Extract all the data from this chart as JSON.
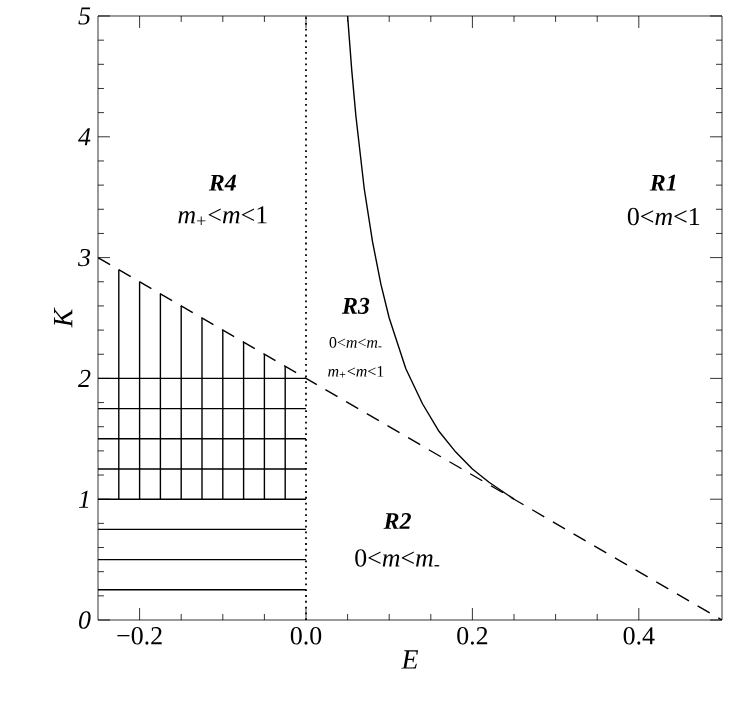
{
  "chart_data": {
    "type": "line",
    "xlabel": "E",
    "ylabel": "K",
    "xlim": [
      -0.25,
      0.5
    ],
    "ylim": [
      0,
      5
    ],
    "xticks": [
      {
        "value": -0.2,
        "label": "−0.2"
      },
      {
        "value": 0,
        "label": "0.0"
      },
      0.2,
      0.4
    ],
    "yticks": [
      0,
      1,
      2,
      3,
      4,
      5
    ],
    "ref_lines": [
      {
        "axis": "x",
        "value": 0,
        "line_style": "dotted",
        "color": "#000000"
      }
    ],
    "annotations": [
      "R1",
      "0<*m*<1",
      "R2",
      "0<*m*<*m*$_{-}$",
      "R3",
      "0<*m*<*m*$_{-}$",
      "*m*$_{+}$<*m*<1",
      "R4",
      "*m*$_{+}$<*m*<1"
    ],
    "series": [
      {
        "type": "line",
        "color": "#000000",
        "line_style": "solid",
        "x": [
          0.05,
          0.055,
          0.06,
          0.07,
          0.08,
          0.09,
          0.1,
          0.12,
          0.14,
          0.16,
          0.18,
          0.2,
          0.22,
          0.25
        ],
        "values": [
          5,
          4.55,
          4.17,
          3.57,
          3.13,
          2.78,
          2.5,
          2.08,
          1.79,
          1.56,
          1.39,
          1.25,
          1.14,
          1.0
        ]
      },
      {
        "color": "#000000",
        "line_style": "dashed",
        "x": [
          -0.25,
          0.5
        ],
        "values": [
          3,
          0
        ]
      },
      {
        "type": "line",
        "color": "#000000",
        "line_style": "solid",
        "x": [
          -0.25,
          0
        ],
        "values": [
          0.25,
          0.25
        ]
      },
      {
        "type": "line",
        "color": "#000000",
        "line_style": "solid",
        "x": [
          -0.25,
          0
        ],
        "values": [
          0.5,
          0.5
        ]
      },
      {
        "type": "line",
        "color": "#000000",
        "line_style": "solid",
        "x": [
          -0.25,
          0
        ],
        "values": [
          0.75,
          0.75
        ]
      },
      {
        "type": "line",
        "color": "#000000",
        "line_style": "solid",
        "x": [
          -0.25,
          0
        ],
        "values": [
          1.0,
          1.0
        ]
      },
      {
        "type": "line",
        "color": "#000000",
        "line_style": "solid",
        "x": [
          -0.25,
          0
        ],
        "values": [
          1.25,
          1.25
        ]
      },
      {
        "type": "line",
        "color": "#000000",
        "line_style": "solid",
        "x": [
          -0.25,
          0
        ],
        "values": [
          1.5,
          1.5
        ]
      },
      {
        "type": "line",
        "color": "#000000",
        "line_style": "solid",
        "x": [
          -0.25,
          0
        ],
        "values": [
          1.75,
          1.75
        ]
      },
      {
        "type": "line",
        "color": "#000000",
        "line_style": "solid",
        "x": [
          -0.25,
          0
        ],
        "values": [
          2.0,
          2.0
        ]
      },
      {
        "type": "line",
        "color": "#000000",
        "line_style": "solid",
        "x": [
          -0.225,
          -0.225
        ],
        "values": [
          1.0,
          2.9
        ]
      },
      {
        "type": "line",
        "color": "#000000",
        "line_style": "solid",
        "x": [
          -0.2,
          -0.2
        ],
        "values": [
          1.0,
          2.8
        ]
      },
      {
        "type": "line",
        "color": "#000000",
        "line_style": "solid",
        "x": [
          -0.175,
          -0.175
        ],
        "values": [
          1.0,
          2.7
        ]
      },
      {
        "type": "line",
        "color": "#000000",
        "line_style": "solid",
        "x": [
          -0.15,
          -0.15
        ],
        "values": [
          1.0,
          2.6
        ]
      },
      {
        "type": "line",
        "color": "#000000",
        "line_style": "solid",
        "x": [
          -0.125,
          -0.125
        ],
        "values": [
          1.0,
          2.5
        ]
      },
      {
        "type": "line",
        "color": "#000000",
        "line_style": "solid",
        "x": [
          -0.1,
          -0.1
        ],
        "values": [
          1.0,
          2.4
        ]
      },
      {
        "type": "line",
        "color": "#000000",
        "line_style": "solid",
        "x": [
          -0.075,
          -0.075
        ],
        "values": [
          1.0,
          2.3
        ]
      },
      {
        "type": "line",
        "color": "#000000",
        "line_style": "solid",
        "x": [
          -0.05,
          -0.05
        ],
        "values": [
          1.0,
          2.2
        ]
      },
      {
        "type": "line",
        "color": "#000000",
        "line_style": "solid",
        "x": [
          -0.025,
          -0.025
        ],
        "values": [
          1.0,
          2.1
        ]
      }
    ]
  }
}
